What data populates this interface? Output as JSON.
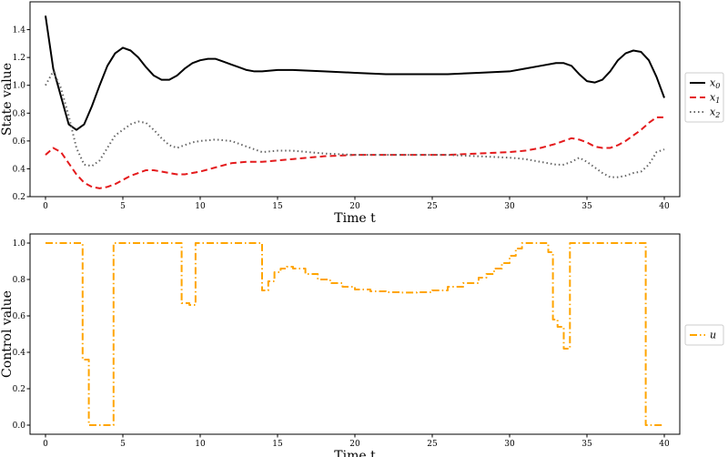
{
  "chart_data": [
    {
      "type": "line",
      "xlabel": "Time t",
      "ylabel": "State value",
      "xlim": [
        -1.0,
        41.0
      ],
      "ylim": [
        0.2,
        1.6
      ],
      "xticks": [
        "0",
        "5",
        "10",
        "15",
        "20",
        "25",
        "30",
        "35",
        "40"
      ],
      "yticks": [
        "0.2",
        "0.4",
        "0.6",
        "0.8",
        "1.0",
        "1.2",
        "1.4"
      ],
      "legend_position": "right",
      "series": [
        {
          "name": "x",
          "subscript": "0",
          "color": "#000000",
          "dash": "solid",
          "x": [
            0,
            0.5,
            1,
            1.5,
            2,
            2.5,
            3,
            3.5,
            4,
            4.5,
            5,
            5.5,
            6,
            6.5,
            7,
            7.5,
            8,
            8.5,
            9,
            9.5,
            10,
            10.5,
            11,
            11.5,
            12,
            12.5,
            13,
            13.5,
            14,
            15,
            16,
            18,
            20,
            22,
            24,
            26,
            28,
            30,
            31,
            32,
            33,
            33.5,
            34,
            34.5,
            35,
            35.5,
            36,
            36.5,
            37,
            37.5,
            38,
            38.5,
            39,
            39.5,
            40
          ],
          "y": [
            1.5,
            1.12,
            0.92,
            0.72,
            0.68,
            0.72,
            0.85,
            1.0,
            1.14,
            1.23,
            1.27,
            1.25,
            1.2,
            1.13,
            1.07,
            1.04,
            1.04,
            1.07,
            1.12,
            1.16,
            1.18,
            1.19,
            1.19,
            1.17,
            1.15,
            1.13,
            1.11,
            1.1,
            1.1,
            1.11,
            1.11,
            1.1,
            1.09,
            1.08,
            1.08,
            1.08,
            1.09,
            1.1,
            1.12,
            1.14,
            1.16,
            1.16,
            1.14,
            1.08,
            1.03,
            1.02,
            1.04,
            1.1,
            1.18,
            1.23,
            1.25,
            1.24,
            1.18,
            1.06,
            0.91
          ]
        },
        {
          "name": "x",
          "subscript": "1",
          "color": "#e41a1c",
          "dash": "dashed",
          "x": [
            0,
            0.5,
            1,
            1.5,
            2,
            2.5,
            3,
            3.5,
            4,
            4.5,
            5,
            5.5,
            6,
            6.5,
            7,
            7.5,
            8,
            8.5,
            9,
            9.5,
            10,
            11,
            12,
            13,
            14,
            15,
            16,
            18,
            20,
            22,
            24,
            26,
            28,
            30,
            31,
            32,
            33,
            34,
            34.5,
            35,
            35.5,
            36,
            36.5,
            37,
            37.5,
            38,
            38.5,
            39,
            39.5,
            40
          ],
          "y": [
            0.5,
            0.55,
            0.52,
            0.44,
            0.36,
            0.3,
            0.27,
            0.26,
            0.27,
            0.29,
            0.32,
            0.35,
            0.37,
            0.39,
            0.39,
            0.38,
            0.37,
            0.36,
            0.36,
            0.37,
            0.38,
            0.41,
            0.44,
            0.45,
            0.45,
            0.46,
            0.47,
            0.49,
            0.5,
            0.5,
            0.5,
            0.5,
            0.51,
            0.52,
            0.53,
            0.55,
            0.58,
            0.62,
            0.61,
            0.59,
            0.56,
            0.55,
            0.55,
            0.57,
            0.6,
            0.64,
            0.68,
            0.73,
            0.77,
            0.77
          ]
        },
        {
          "name": "x",
          "subscript": "2",
          "color": "#666666",
          "dash": "dotted",
          "x": [
            0,
            0.5,
            1,
            1.5,
            2,
            2.5,
            3,
            3.5,
            4,
            4.5,
            5,
            5.5,
            6,
            6.5,
            7,
            7.5,
            8,
            8.5,
            9,
            9.5,
            10,
            11,
            12,
            13,
            14,
            15,
            16,
            18,
            20,
            22,
            24,
            26,
            28,
            30,
            31,
            32,
            33,
            33.5,
            34,
            34.5,
            35,
            35.5,
            36,
            36.5,
            37,
            37.5,
            38,
            38.5,
            39,
            39.5,
            40
          ],
          "y": [
            1.0,
            1.1,
            0.98,
            0.78,
            0.55,
            0.43,
            0.42,
            0.46,
            0.55,
            0.64,
            0.68,
            0.72,
            0.74,
            0.73,
            0.68,
            0.62,
            0.57,
            0.55,
            0.57,
            0.59,
            0.6,
            0.61,
            0.6,
            0.56,
            0.52,
            0.53,
            0.53,
            0.51,
            0.5,
            0.5,
            0.5,
            0.5,
            0.49,
            0.48,
            0.47,
            0.45,
            0.43,
            0.43,
            0.45,
            0.48,
            0.45,
            0.41,
            0.37,
            0.34,
            0.34,
            0.35,
            0.37,
            0.38,
            0.43,
            0.52,
            0.54
          ]
        }
      ]
    },
    {
      "type": "line",
      "step": true,
      "xlabel": "Time t",
      "ylabel": "Control value",
      "xlim": [
        -1.0,
        41.0
      ],
      "ylim": [
        -0.05,
        1.05
      ],
      "xticks": [
        "0",
        "5",
        "10",
        "15",
        "20",
        "25",
        "30",
        "35",
        "40"
      ],
      "yticks": [
        "0.0",
        "0.2",
        "0.4",
        "0.6",
        "0.8",
        "1.0"
      ],
      "legend_position": "right",
      "series": [
        {
          "name": "u",
          "color": "#ffa500",
          "dash": "dashdot",
          "x": [
            0,
            2.4,
            2.8,
            4.4,
            8.8,
            9.3,
            9.7,
            14.0,
            14.4,
            14.8,
            15.2,
            15.6,
            16.0,
            16.8,
            17.6,
            18.4,
            19.2,
            20.0,
            21.0,
            22.0,
            23.0,
            24.0,
            25.0,
            26.0,
            27.0,
            28.0,
            28.5,
            29.0,
            29.5,
            30.0,
            30.4,
            30.8,
            32.0,
            32.5,
            32.8,
            33.1,
            33.5,
            33.9,
            38.8,
            39.2,
            40.0
          ],
          "y": [
            1.0,
            0.36,
            0.0,
            1.0,
            0.67,
            0.66,
            1.0,
            0.74,
            0.79,
            0.84,
            0.86,
            0.87,
            0.86,
            0.83,
            0.8,
            0.78,
            0.76,
            0.745,
            0.735,
            0.73,
            0.728,
            0.73,
            0.74,
            0.76,
            0.78,
            0.81,
            0.83,
            0.86,
            0.89,
            0.93,
            0.97,
            1.0,
            1.0,
            0.95,
            0.58,
            0.54,
            0.42,
            1.0,
            0.0,
            0.0,
            0.0
          ]
        }
      ]
    }
  ]
}
